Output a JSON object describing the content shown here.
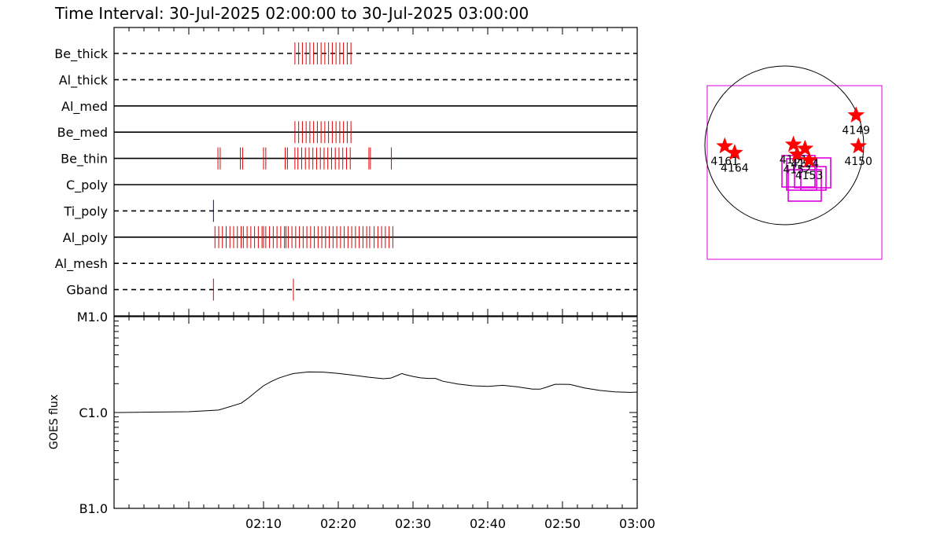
{
  "title": "Time Interval: 30-Jul-2025 02:00:00 to 30-Jul-2025 03:00:00",
  "colors": {
    "event": "#dd0000",
    "ti_event": "#0000cc",
    "box": "#dd00dd",
    "star": "#ff0000",
    "axis": "#000000"
  },
  "chart_data": [
    {
      "type": "line",
      "name": "filter-timeline",
      "x_unit": "minutes after 02:00",
      "xlim": [
        -10,
        60
      ],
      "rows": [
        {
          "label": "Be_thick",
          "style": "dashed",
          "events": [
            14.2,
            14.7,
            15.2,
            15.7,
            16.2,
            16.7,
            17.2,
            17.7,
            18.2,
            18.7,
            19.2,
            19.7,
            20.2,
            20.7,
            21.2,
            21.7
          ]
        },
        {
          "label": "Al_thick",
          "style": "dashed",
          "events": []
        },
        {
          "label": "Al_med",
          "style": "solid",
          "events": []
        },
        {
          "label": "Be_med",
          "style": "solid",
          "events": [
            14.2,
            14.7,
            15.2,
            15.7,
            16.2,
            16.7,
            17.2,
            17.7,
            18.2,
            18.7,
            19.2,
            19.7,
            20.2,
            20.7,
            21.2,
            21.7
          ]
        },
        {
          "label": "Be_thin",
          "style": "solid",
          "events": [
            3.9,
            4.2,
            6.9,
            7.2,
            10.0,
            10.3,
            12.9,
            13.2,
            14.2,
            14.6,
            15.1,
            15.6,
            16.1,
            16.6,
            17.1,
            17.6,
            18.1,
            18.6,
            19.1,
            19.6,
            20.1,
            20.6,
            21.1,
            21.6,
            24.1,
            24.3,
            27.1
          ]
        },
        {
          "label": "C_poly",
          "style": "solid",
          "events": []
        },
        {
          "label": "Ti_poly",
          "style": "dashed",
          "events": [
            3.3
          ]
        },
        {
          "label": "Al_poly",
          "style": "solid",
          "events": [
            3.5,
            4.0,
            4.5,
            5.0,
            5.5,
            6.0,
            6.5,
            7.0,
            7.3,
            7.8,
            8.3,
            8.8,
            9.3,
            9.8,
            10.0,
            10.3,
            10.8,
            11.3,
            11.8,
            12.3,
            12.8,
            13.0,
            13.3,
            13.8,
            14.3,
            14.8,
            15.3,
            15.8,
            16.3,
            16.8,
            17.3,
            17.8,
            18.3,
            18.8,
            19.3,
            19.8,
            20.3,
            20.8,
            21.3,
            21.8,
            22.3,
            22.8,
            23.3,
            23.8,
            24.2,
            24.8,
            25.3,
            25.8,
            26.3,
            26.8,
            27.3
          ]
        },
        {
          "label": "Al_mesh",
          "style": "dashed",
          "events": []
        },
        {
          "label": "Gband",
          "style": "dashed",
          "events": [
            3.3,
            14.0
          ]
        }
      ]
    },
    {
      "type": "line",
      "ylabel": "GOES flux",
      "x_unit": "minutes after 02:00",
      "xlim": [
        -10,
        60
      ],
      "xticks": [
        {
          "v": 10,
          "label": "02:10"
        },
        {
          "v": 20,
          "label": "02:20"
        },
        {
          "v": 30,
          "label": "02:30"
        },
        {
          "v": 40,
          "label": "02:40"
        },
        {
          "v": 50,
          "label": "02:50"
        },
        {
          "v": 60,
          "label": "03:00"
        }
      ],
      "yscale": "log",
      "ylim": [
        1e-07,
        1e-05
      ],
      "yticks": [
        {
          "v": 1e-05,
          "label": "M1.0"
        },
        {
          "v": 1e-06,
          "label": "C1.0"
        },
        {
          "v": 1e-07,
          "label": "B1.0"
        }
      ],
      "x": [
        -9.0,
        -5.0,
        0.0,
        4.0,
        7.0,
        8.0,
        9.0,
        10.0,
        11.0,
        12.0,
        13.0,
        14.0,
        16.0,
        18.0,
        20.0,
        22.0,
        24.0,
        26.0,
        27.0,
        28.0,
        28.5,
        29.0,
        30.0,
        31.0,
        32.0,
        33.0,
        34.0,
        36.0,
        38.0,
        40.0,
        42.0,
        44.0,
        46.0,
        47.0,
        48.0,
        49.0,
        50.0,
        51.0,
        53.0,
        55.0,
        57.0,
        59.0,
        60.0
      ],
      "y": [
        1e-06,
        1.01e-06,
        1.02e-06,
        1.06e-06,
        1.25e-06,
        1.42e-06,
        1.65e-06,
        1.9e-06,
        2.1e-06,
        2.28e-06,
        2.42e-06,
        2.55e-06,
        2.65e-06,
        2.64e-06,
        2.56e-06,
        2.45e-06,
        2.34e-06,
        2.25e-06,
        2.28e-06,
        2.45e-06,
        2.55e-06,
        2.48e-06,
        2.38e-06,
        2.3e-06,
        2.27e-06,
        2.27e-06,
        2.12e-06,
        1.98e-06,
        1.9e-06,
        1.87e-06,
        1.92e-06,
        1.85e-06,
        1.75e-06,
        1.75e-06,
        1.85e-06,
        1.97e-06,
        1.97e-06,
        1.96e-06,
        1.8e-06,
        1.7e-06,
        1.64e-06,
        1.62e-06,
        1.63e-06
      ]
    }
  ],
  "sun_map": {
    "regions": [
      {
        "label": "4149",
        "x": 867,
        "y": 364
      },
      {
        "label": "4150",
        "x": 895,
        "y": -10
      },
      {
        "label": "4161",
        "x": -720,
        "y": -10
      },
      {
        "label": "4164",
        "x": -600,
        "y": -90
      },
      {
        "label": "4151",
        "x": 110,
        "y": 10
      },
      {
        "label": "4152",
        "x": 155,
        "y": -110
      },
      {
        "label": "4154",
        "x": 250,
        "y": -40
      },
      {
        "label": "4153",
        "x": 300,
        "y": -180
      }
    ]
  }
}
